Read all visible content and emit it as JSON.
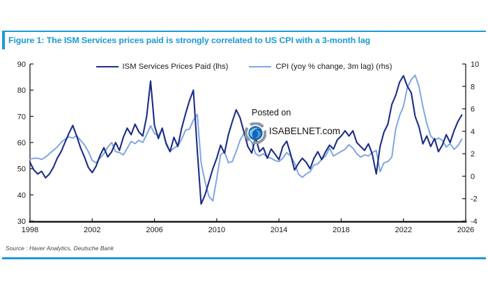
{
  "figure": {
    "title": "Figure 1: The ISM Services prices paid is strongly correlated to US CPI with a 3-month lag",
    "source": "Source : Haver Analytics, Deutsche Bank",
    "watermark": {
      "line1": "Posted on",
      "line2": "ISABELNET.com"
    },
    "accent_color": "#1a9ad6",
    "axis_color": "#1a1a1a"
  },
  "chart_data": {
    "type": "line",
    "title": "Figure 1: The ISM Services prices paid is strongly correlated to US CPI with a 3-month lag",
    "grid": false,
    "legend_position": "top-center",
    "x_start": 1998,
    "x_step": 0.25,
    "x_ticks": [
      1998,
      2002,
      2006,
      2010,
      2014,
      2018,
      2022,
      2026
    ],
    "x_range": [
      1998,
      2026
    ],
    "left_axis": {
      "range": [
        30,
        90
      ],
      "ticks": [
        90,
        80,
        70,
        60,
        50,
        40,
        30
      ]
    },
    "right_axis": {
      "range": [
        -4,
        10
      ],
      "ticks": [
        10,
        8,
        6,
        4,
        2,
        0,
        -2,
        -4
      ]
    },
    "series": [
      {
        "name": "ISM Services Prices Paid (lhs)",
        "axis": "left",
        "color": "#1c2d87",
        "width": 2.1,
        "values": [
          52.5,
          49.5,
          48,
          49,
          46.5,
          48,
          50.5,
          54,
          56.5,
          60,
          63.5,
          66.5,
          62.5,
          58,
          54.5,
          50.5,
          48.5,
          51,
          55,
          58,
          54.5,
          56.5,
          60,
          57,
          62,
          65.5,
          63,
          67,
          64,
          62.5,
          70,
          83.5,
          66.5,
          61.5,
          65.5,
          59.5,
          56.5,
          62,
          58.5,
          65.5,
          71,
          76,
          80,
          57,
          36.5,
          40,
          45,
          50,
          54,
          59,
          56,
          63,
          68,
          72.5,
          69.5,
          64,
          58.5,
          56,
          62,
          56.5,
          58,
          54,
          57.5,
          55.5,
          53.5,
          58.5,
          60.5,
          55.5,
          49.5,
          52,
          54,
          52.5,
          50,
          54,
          56.5,
          53.5,
          56.5,
          59,
          57.5,
          61,
          62.5,
          64.5,
          62.5,
          64.5,
          60,
          58.5,
          57,
          59.5,
          55.5,
          48,
          58.5,
          64,
          67,
          74.5,
          78,
          83,
          85.5,
          81.5,
          79,
          70,
          66,
          59.5,
          62.5,
          58.5,
          61.5,
          56.5,
          59,
          63,
          60,
          64.5,
          68,
          70.5
        ]
      },
      {
        "name": "CPI (yoy % change, 3m lag) (rhs)",
        "axis": "right",
        "color": "#7fa7e0",
        "width": 2.0,
        "values": [
          1.5,
          1.6,
          1.6,
          1.5,
          1.7,
          2.0,
          2.3,
          2.6,
          3.0,
          3.3,
          3.5,
          3.4,
          3.6,
          3.2,
          2.8,
          2.2,
          1.4,
          1.2,
          1.6,
          2.0,
          2.6,
          3.0,
          2.2,
          2.1,
          1.9,
          2.5,
          3.1,
          2.9,
          3.2,
          3.0,
          3.7,
          4.5,
          3.8,
          3.6,
          4.2,
          3.0,
          2.2,
          2.5,
          2.7,
          3.3,
          4.1,
          4.2,
          5.0,
          5.5,
          1.2,
          -0.5,
          -1.8,
          -2.2,
          -0.2,
          1.9,
          2.2,
          1.2,
          1.3,
          2.2,
          3.2,
          3.8,
          3.5,
          3.0,
          2.0,
          1.8,
          2.0,
          1.7,
          1.6,
          1.4,
          1.3,
          1.6,
          2.1,
          1.8,
          1.2,
          0.2,
          -0.1,
          0.2,
          0.4,
          1.0,
          1.1,
          1.5,
          1.8,
          2.5,
          1.8,
          2.0,
          2.2,
          2.4,
          2.8,
          2.5,
          2.0,
          1.7,
          1.9,
          1.8,
          2.1,
          2.3,
          0.4,
          1.2,
          1.3,
          1.7,
          4.2,
          5.4,
          6.2,
          7.9,
          8.6,
          9.0,
          8.0,
          6.2,
          4.7,
          3.6,
          3.2,
          3.4,
          3.2,
          2.6,
          2.9,
          2.4,
          2.7,
          3.3
        ]
      }
    ]
  }
}
